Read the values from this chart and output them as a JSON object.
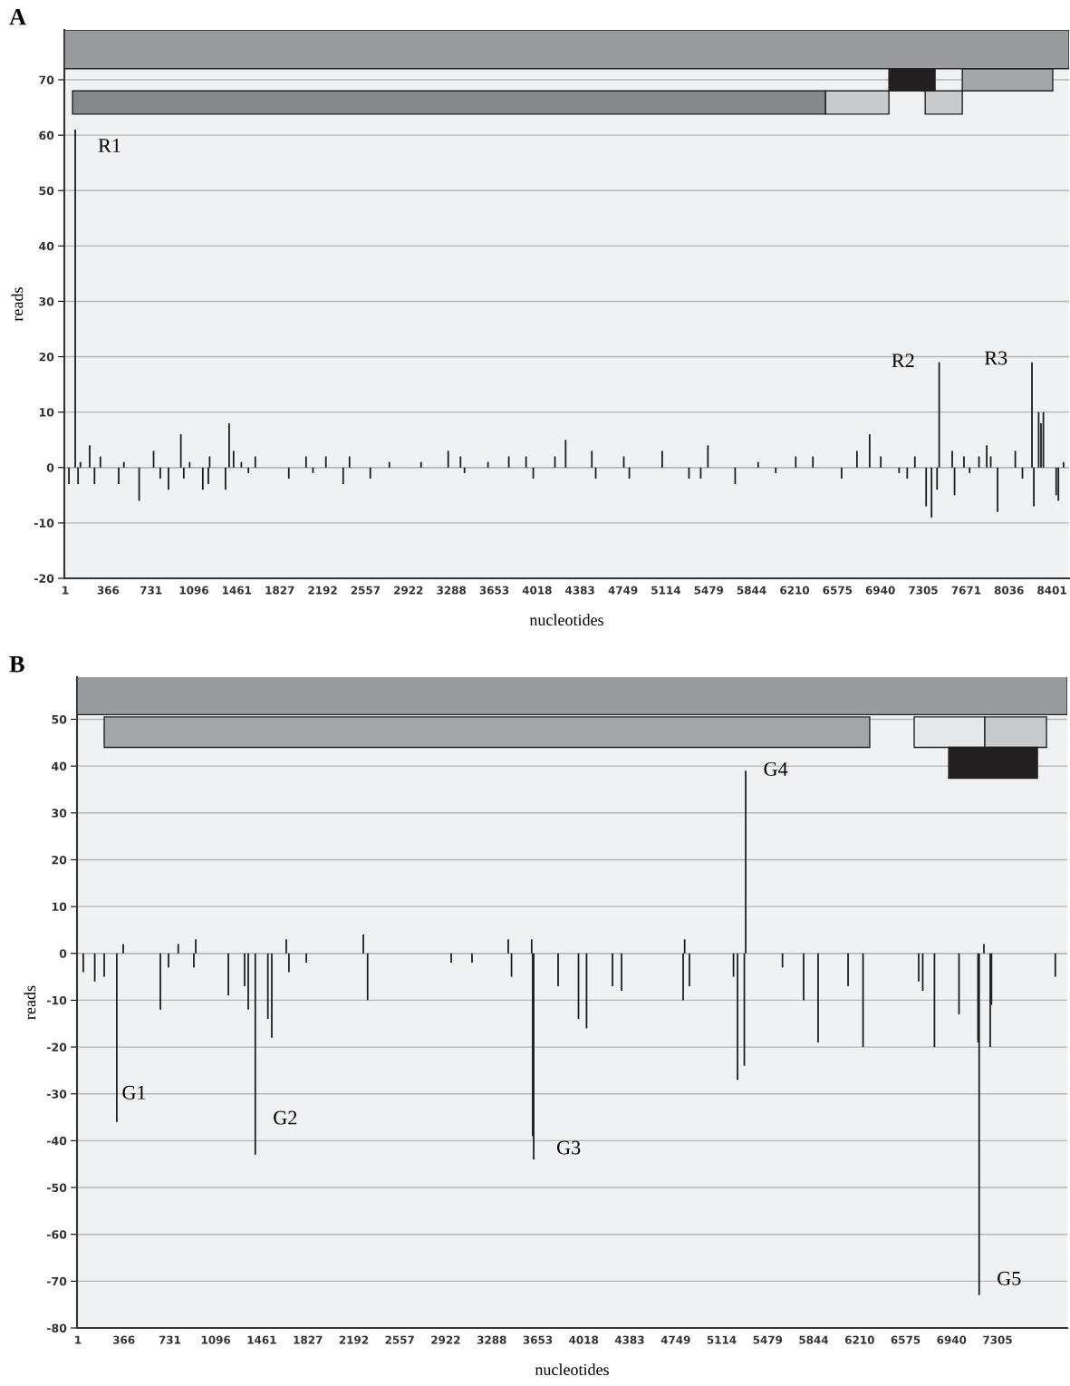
{
  "chart_data": [
    {
      "type": "bar",
      "title": "A",
      "xlabel": "nucleotides",
      "ylabel": "reads",
      "series": [
        {
          "color": "#1a1a1a",
          "x": [
            32,
            86,
            110,
            130,
            209,
            250,
            300,
            456,
            500,
            630,
            753,
            810,
            880,
            985,
            1010,
            1060,
            1172,
            1219,
            1230,
            1365,
            1396,
            1434,
            1500,
            1560,
            1619,
            1904,
            2051,
            2110,
            2220,
            2367,
            2421,
            2598,
            2760,
            3030,
            3261,
            3366,
            3400,
            3600,
            3777,
            3924,
            3985,
            4170,
            4261,
            4484,
            4517,
            4756,
            4803,
            5083,
            5311,
            5411,
            5472,
            5704,
            5900,
            6050,
            6220,
            6366,
            6610,
            6741,
            6849,
            6944,
            7100,
            7169,
            7234,
            7330,
            7376,
            7423,
            7441,
            7552,
            7572,
            7652,
            7700,
            7780,
            7846,
            7880,
            7938,
            8089,
            8150,
            8231,
            8247,
            8288,
            8308,
            8328,
            8437,
            8456,
            8500
          ],
          "values": [
            -3,
            61,
            -3,
            1,
            4,
            -3,
            2,
            -3,
            1,
            -6,
            3,
            -2,
            -4,
            6,
            -2,
            1,
            -4,
            -3,
            2,
            -4,
            8,
            3,
            1,
            -1,
            2,
            -2,
            2,
            -1,
            2,
            -3,
            2,
            -2,
            1,
            1,
            3,
            2,
            -1,
            1,
            2,
            2,
            -2,
            2,
            5,
            3,
            -2,
            2,
            -2,
            3,
            -2,
            -2,
            4,
            -3,
            1,
            -1,
            2,
            2,
            -2,
            3,
            6,
            2,
            -1,
            -2,
            2,
            -7,
            -9,
            -4,
            19,
            3,
            -5,
            2,
            -1,
            2,
            4,
            2,
            -8,
            3,
            -2,
            19,
            -7,
            10,
            8,
            10,
            -5,
            -6,
            1
          ]
        }
      ],
      "xlim": [
        -7,
        8547
      ],
      "xticks": [
        1,
        366,
        731,
        1096,
        1461,
        1827,
        2192,
        2557,
        2922,
        3288,
        3653,
        4018,
        4383,
        4749,
        5114,
        5479,
        5844,
        6210,
        6575,
        6940,
        7305,
        7671,
        8036,
        8401
      ],
      "ylim": [
        -20,
        79
      ],
      "yticks": [
        -20,
        -10,
        0,
        10,
        20,
        30,
        40,
        50,
        60,
        70
      ],
      "grid": "y",
      "legend": false,
      "annotations": [
        {
          "text": "R1",
          "x": 86,
          "y": 61
        },
        {
          "text": "R2",
          "x": 7441,
          "y": 19
        },
        {
          "text": "R3",
          "x": 8231,
          "y": 19
        }
      ]
    },
    {
      "type": "bar",
      "title": "B",
      "xlabel": "nucleotides",
      "ylabel": "reads",
      "series": [
        {
          "color": "#1a1a1a",
          "x": [
            44,
            135,
            210,
            310,
            361,
            656,
            721,
            798,
            922,
            937,
            1196,
            1325,
            1354,
            1410,
            1510,
            1541,
            1656,
            1677,
            1815,
            2268,
            2302,
            2966,
            3131,
            3419,
            3445,
            3605,
            3613,
            3621,
            3815,
            3977,
            4041,
            4247,
            4319,
            4808,
            4820,
            4858,
            5208,
            5240,
            5294,
            5305,
            5597,
            5765,
            5880,
            6118,
            6237,
            6679,
            6711,
            6804,
            6999,
            7150,
            7159,
            7197,
            7247,
            7257,
            7764
          ],
          "values": [
            -4,
            -6,
            -5,
            -36,
            2,
            -12,
            -3,
            2,
            -3,
            3,
            -9,
            -7,
            -12,
            -43,
            -14,
            -18,
            3,
            -4,
            -2,
            4,
            -10,
            -2,
            -2,
            3,
            -5,
            3,
            -39,
            -44,
            -7,
            -14,
            -16,
            -7,
            -8,
            -10,
            3,
            -7,
            -5,
            -27,
            -24,
            39,
            -3,
            -10,
            -19,
            -7,
            -20,
            -6,
            -8,
            -20,
            -13,
            -19,
            -73,
            2,
            -20,
            -11,
            -5
          ]
        }
      ],
      "xlim": [
        -6,
        7859
      ],
      "xticks": [
        1,
        366,
        731,
        1096,
        1461,
        1827,
        2192,
        2557,
        2922,
        3288,
        3653,
        4018,
        4383,
        4749,
        5114,
        5479,
        5844,
        6210,
        6575,
        6940,
        7305
      ],
      "ylim": [
        -80,
        59
      ],
      "yticks": [
        -80,
        -70,
        -60,
        -50,
        -40,
        -30,
        -20,
        -10,
        0,
        10,
        20,
        30,
        40,
        50
      ],
      "grid": "y",
      "legend": false,
      "annotations": [
        {
          "text": "G1",
          "x": 310,
          "y": -36
        },
        {
          "text": "G2",
          "x": 1410,
          "y": -43
        },
        {
          "text": "G3",
          "x": 3621,
          "y": -44
        },
        {
          "text": "G4",
          "x": 5305,
          "y": 39
        },
        {
          "text": "G5",
          "x": 7159,
          "y": -73
        }
      ]
    }
  ]
}
